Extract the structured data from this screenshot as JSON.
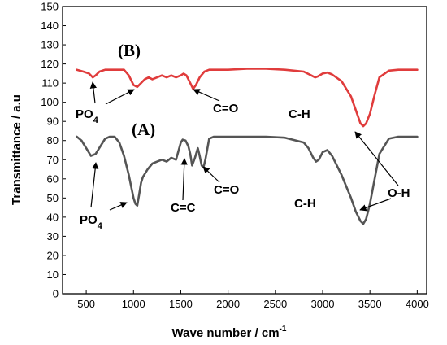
{
  "chart_data": {
    "type": "line",
    "title": "",
    "xlabel": "Wave number / cm",
    "xlabel_sup": "-1",
    "ylabel": "Transmittance / a.u",
    "xlim": [
      250,
      4100
    ],
    "ylim": [
      0,
      150
    ],
    "x_ticks": [
      500,
      1000,
      1500,
      2000,
      2500,
      3000,
      3500,
      4000
    ],
    "y_ticks": [
      0,
      10,
      20,
      30,
      40,
      50,
      60,
      70,
      80,
      90,
      100,
      110,
      120,
      130,
      140,
      150
    ],
    "grid": false,
    "legend": "none",
    "series": [
      {
        "name": "(B)",
        "color": "#e03c3c",
        "x": [
          400,
          470,
          530,
          570,
          600,
          640,
          700,
          800,
          900,
          950,
          1000,
          1040,
          1080,
          1120,
          1160,
          1200,
          1250,
          1300,
          1350,
          1400,
          1450,
          1500,
          1530,
          1560,
          1600,
          1630,
          1660,
          1700,
          1750,
          1800,
          2000,
          2200,
          2400,
          2600,
          2800,
          2880,
          2920,
          2950,
          3000,
          3050,
          3100,
          3200,
          3300,
          3350,
          3400,
          3430,
          3460,
          3500,
          3550,
          3600,
          3700,
          3800,
          3900,
          4000
        ],
        "y": [
          117,
          116,
          115,
          113,
          114,
          116,
          117,
          117,
          117,
          114,
          109,
          108,
          110,
          112,
          113,
          112,
          113,
          114,
          113,
          114,
          113,
          114,
          115,
          114,
          110,
          107,
          109,
          113,
          116,
          117,
          117,
          117.5,
          117.5,
          117,
          116,
          114,
          113,
          113.5,
          115,
          115.5,
          114.5,
          111,
          103,
          96,
          89,
          87.5,
          89,
          94,
          104,
          113,
          116.5,
          117,
          117,
          117
        ]
      },
      {
        "name": "(A)",
        "color": "#555555",
        "x": [
          400,
          450,
          500,
          550,
          600,
          650,
          700,
          750,
          800,
          850,
          900,
          950,
          980,
          1000,
          1020,
          1040,
          1060,
          1080,
          1100,
          1150,
          1200,
          1250,
          1300,
          1350,
          1400,
          1450,
          1500,
          1520,
          1550,
          1580,
          1600,
          1620,
          1650,
          1680,
          1700,
          1720,
          1740,
          1760,
          1800,
          1850,
          2000,
          2200,
          2400,
          2600,
          2800,
          2850,
          2900,
          2930,
          2960,
          3000,
          3050,
          3100,
          3200,
          3300,
          3350,
          3400,
          3430,
          3460,
          3500,
          3550,
          3600,
          3700,
          3800,
          3900,
          4000
        ],
        "y": [
          82,
          80,
          76,
          72,
          73,
          77,
          81,
          82,
          82,
          79,
          72,
          62,
          55,
          50,
          47,
          46,
          52,
          58,
          61,
          65,
          68,
          69,
          70,
          69,
          71,
          70,
          79,
          80.5,
          80,
          77,
          73,
          67,
          71,
          76,
          72,
          67,
          66,
          70,
          81,
          82,
          82,
          82,
          82,
          81.5,
          79,
          76,
          71,
          69,
          70,
          74,
          75,
          72,
          62,
          50,
          43,
          38,
          36.5,
          39,
          47,
          60,
          73,
          81,
          82,
          82,
          82
        ]
      }
    ],
    "annotations": {
      "curve_b": "(B)",
      "curve_a": "(A)",
      "po4_b": "PO",
      "po4_b_sub": "4",
      "co_b": "C=O",
      "ch_b": "C-H",
      "po4_a": "PO",
      "po4_a_sub": "4",
      "cc_a": "C=C",
      "co_a": "C=O",
      "ch_a": "C-H",
      "oh": "O-H"
    }
  }
}
